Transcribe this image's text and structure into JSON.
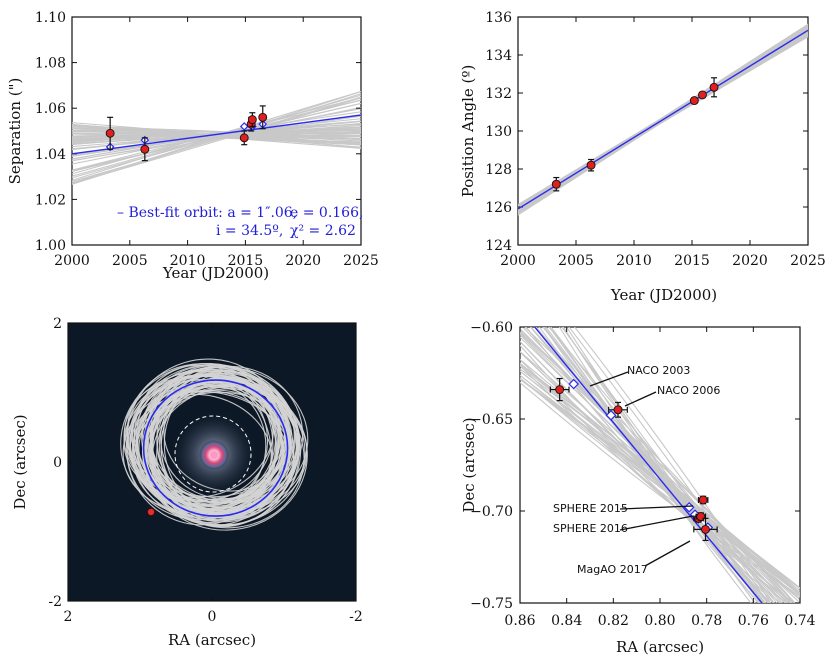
{
  "chart_data": [
    {
      "type": "line",
      "id": "separation",
      "xlabel": "Year (JD2000)",
      "ylabel": "Separation (\")",
      "xlim": [
        2000,
        2025
      ],
      "ylim": [
        1.0,
        1.1
      ],
      "xticks": [
        2000,
        2005,
        2010,
        2015,
        2020,
        2025
      ],
      "yticks": [
        1.0,
        1.02,
        1.04,
        1.06,
        1.08,
        1.1
      ],
      "ytick_labels": [
        "1.00",
        "1.02",
        "1.04",
        "1.06",
        "1.08",
        "1.10"
      ],
      "best_fit": {
        "x": [
          2000,
          2025
        ],
        "y": [
          1.04,
          1.057
        ]
      },
      "observations": [
        {
          "x": 2003.3,
          "y": 1.049,
          "err": 0.007
        },
        {
          "x": 2006.3,
          "y": 1.042,
          "err": 0.005
        },
        {
          "x": 2014.9,
          "y": 1.047,
          "err": 0.003
        },
        {
          "x": 2015.5,
          "y": 1.053,
          "err": 0.003
        },
        {
          "x": 2015.6,
          "y": 1.055,
          "err": 0.003
        },
        {
          "x": 2016.5,
          "y": 1.056,
          "err": 0.005
        }
      ],
      "model_points": [
        {
          "x": 2003.3,
          "y": 1.043
        },
        {
          "x": 2006.3,
          "y": 1.046
        },
        {
          "x": 2014.9,
          "y": 1.052
        },
        {
          "x": 2015.6,
          "y": 1.052
        },
        {
          "x": 2016.5,
          "y": 1.053
        }
      ],
      "legend": {
        "line1": "– Best-fit orbit: a = 1″.06,",
        "line1b": "e = 0.166,",
        "line2": "i = 34.5º,",
        "line2b": "χ² = 2.62"
      }
    },
    {
      "type": "line",
      "id": "position-angle",
      "xlabel": "Year (JD2000)",
      "ylabel": "Position Angle (º)",
      "xlim": [
        2000,
        2025
      ],
      "ylim": [
        124,
        136
      ],
      "xticks": [
        2000,
        2005,
        2010,
        2015,
        2020,
        2025
      ],
      "yticks": [
        124,
        126,
        128,
        130,
        132,
        134,
        136
      ],
      "best_fit": {
        "x": [
          2000,
          2025
        ],
        "y": [
          125.9,
          135.3
        ]
      },
      "observations": [
        {
          "x": 2003.3,
          "y": 127.2,
          "err": 0.35
        },
        {
          "x": 2006.3,
          "y": 128.2,
          "err": 0.3
        },
        {
          "x": 2015.2,
          "y": 131.6,
          "err": 0.15
        },
        {
          "x": 2015.9,
          "y": 131.9,
          "err": 0.15
        },
        {
          "x": 2016.9,
          "y": 132.3,
          "err": 0.5
        }
      ]
    },
    {
      "type": "image-orbit",
      "id": "sky-orbit",
      "xlabel": "RA (arcsec)",
      "ylabel": "Dec (arcsec)",
      "xlim": [
        2,
        -2
      ],
      "ylim": [
        -2,
        2
      ],
      "xticks": [
        2,
        0,
        -2
      ],
      "yticks": [
        -2,
        0,
        2
      ],
      "companion": {
        "x": 0.82,
        "y": -0.67
      }
    },
    {
      "type": "scatter",
      "id": "relative-astrometry",
      "xlabel": "RA (arcsec)",
      "ylabel": "Dec (arcsec)",
      "xlim": [
        0.86,
        0.74
      ],
      "ylim": [
        -0.75,
        -0.6
      ],
      "xticks": [
        0.86,
        0.84,
        0.82,
        0.8,
        0.78,
        0.76,
        0.74
      ],
      "xtick_labels": [
        "0.86",
        "0.84",
        "0.82",
        "0.80",
        "0.78",
        "0.76",
        "0.74"
      ],
      "yticks": [
        -0.75,
        -0.7,
        -0.65,
        -0.6
      ],
      "ytick_labels": [
        "−0.75",
        "−0.70",
        "−0.65",
        "−0.60"
      ],
      "best_fit": {
        "x": [
          0.855,
          0.755
        ],
        "y": [
          -0.598,
          -0.752
        ]
      },
      "observations": [
        {
          "label": "NACO 2003",
          "x": 0.843,
          "y": -0.634,
          "xerr": 0.004,
          "yerr": 0.006
        },
        {
          "label": "NACO 2006",
          "x": 0.818,
          "y": -0.645,
          "xerr": 0.004,
          "yerr": 0.004
        },
        {
          "label": "SPHERE 2015",
          "x": 0.7815,
          "y": -0.694,
          "xerr": 0.002,
          "yerr": 0.002
        },
        {
          "label": "SPHERE 2016",
          "x": 0.7835,
          "y": -0.704,
          "xerr": 0.002,
          "yerr": 0.002
        },
        {
          "label": "",
          "x": 0.7825,
          "y": -0.703,
          "xerr": 0.002,
          "yerr": 0.002
        },
        {
          "label": "MagAO 2017",
          "x": 0.7805,
          "y": -0.71,
          "xerr": 0.005,
          "yerr": 0.006
        }
      ],
      "model_points": [
        {
          "x": 0.837,
          "y": -0.631
        },
        {
          "x": 0.821,
          "y": -0.648
        },
        {
          "x": 0.7875,
          "y": -0.698
        },
        {
          "x": 0.785,
          "y": -0.702
        },
        {
          "x": 0.7835,
          "y": -0.704
        },
        {
          "x": 0.7795,
          "y": -0.709
        }
      ]
    }
  ]
}
